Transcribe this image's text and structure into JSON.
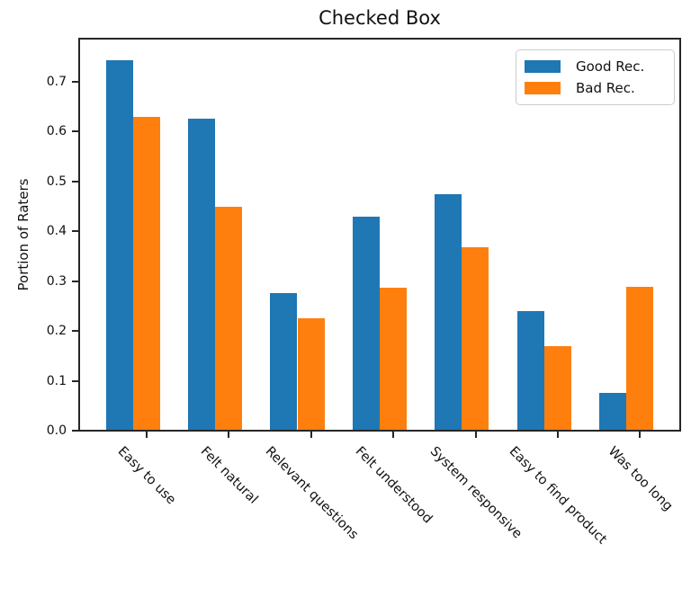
{
  "colors": {
    "good": "#1f77b4",
    "bad": "#ff7f0e",
    "spine": "#262626",
    "text": "#111111",
    "background": "#ffffff",
    "legend_border": "#cccccc"
  },
  "legend": {
    "position": "upper right",
    "entries": [
      "Good Rec.",
      "Bad Rec."
    ]
  },
  "chart_data": {
    "type": "bar",
    "title": "Checked Box",
    "xlabel": "",
    "ylabel": "Portion of Raters",
    "categories": [
      "Easy to use",
      "Felt natural",
      "Relevant questions",
      "Felt understood",
      "System responsive",
      "Easy to find product",
      "Was too long"
    ],
    "series": [
      {
        "name": "Good Rec.",
        "color": "#1f77b4",
        "values": [
          0.743,
          0.626,
          0.276,
          0.429,
          0.473,
          0.239,
          0.076
        ]
      },
      {
        "name": "Bad Rec.",
        "color": "#ff7f0e",
        "values": [
          0.628,
          0.448,
          0.225,
          0.286,
          0.368,
          0.169,
          0.288
        ]
      }
    ],
    "ylim": [
      0,
      0.787
    ],
    "yticks": [
      0.0,
      0.1,
      0.2,
      0.3,
      0.4,
      0.5,
      0.6,
      0.7
    ],
    "grid": false,
    "xtick_label_rotation_deg": 45,
    "bar_width_frac": 0.33
  }
}
